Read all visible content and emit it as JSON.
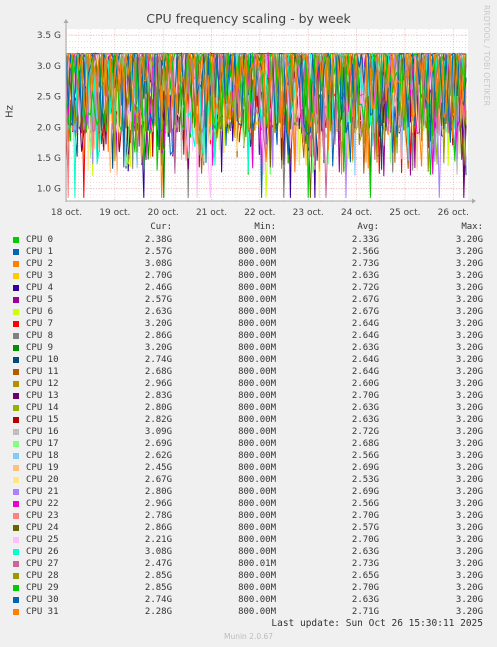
{
  "chart_data": {
    "type": "line",
    "title": "CPU frequency scaling - by week",
    "ylabel": "Hz",
    "ylim": [
      0.8,
      3.6
    ],
    "yticks": [
      "1.0 G",
      "1.5 G",
      "2.0 G",
      "2.5 G",
      "3.0 G",
      "3.5 G"
    ],
    "ytick_values": [
      1.0,
      1.5,
      2.0,
      2.5,
      3.0,
      3.5
    ],
    "xticks": [
      "18 oct.",
      "19 oct.",
      "20 oct.",
      "21 oct.",
      "22 oct.",
      "23 oct.",
      "24 oct.",
      "25 oct.",
      "26 oct."
    ],
    "grid": true,
    "legend_placement": "bottom",
    "columns": [
      "Cur:",
      "Min:",
      "Avg:",
      "Max:"
    ],
    "series": [
      {
        "name": "CPU 0",
        "color": "#00cc00",
        "cur": "2.38G",
        "min": "800.00M",
        "avg": "2.33G",
        "max": "3.20G"
      },
      {
        "name": "CPU 1",
        "color": "#0066b3",
        "cur": "2.57G",
        "min": "800.00M",
        "avg": "2.56G",
        "max": "3.20G"
      },
      {
        "name": "CPU 2",
        "color": "#ff8000",
        "cur": "3.08G",
        "min": "800.00M",
        "avg": "2.73G",
        "max": "3.20G"
      },
      {
        "name": "CPU 3",
        "color": "#ffcc00",
        "cur": "2.70G",
        "min": "800.00M",
        "avg": "2.63G",
        "max": "3.20G"
      },
      {
        "name": "CPU 4",
        "color": "#330099",
        "cur": "2.46G",
        "min": "800.00M",
        "avg": "2.72G",
        "max": "3.20G"
      },
      {
        "name": "CPU 5",
        "color": "#990099",
        "cur": "2.57G",
        "min": "800.00M",
        "avg": "2.67G",
        "max": "3.20G"
      },
      {
        "name": "CPU 6",
        "color": "#ccff00",
        "cur": "2.63G",
        "min": "800.00M",
        "avg": "2.67G",
        "max": "3.20G"
      },
      {
        "name": "CPU 7",
        "color": "#ff0000",
        "cur": "3.20G",
        "min": "800.00M",
        "avg": "2.64G",
        "max": "3.20G"
      },
      {
        "name": "CPU 8",
        "color": "#808080",
        "cur": "2.86G",
        "min": "800.00M",
        "avg": "2.64G",
        "max": "3.20G"
      },
      {
        "name": "CPU 9",
        "color": "#008f00",
        "cur": "3.20G",
        "min": "800.00M",
        "avg": "2.63G",
        "max": "3.20G"
      },
      {
        "name": "CPU 10",
        "color": "#00487d",
        "cur": "2.74G",
        "min": "800.00M",
        "avg": "2.64G",
        "max": "3.20G"
      },
      {
        "name": "CPU 11",
        "color": "#b35a00",
        "cur": "2.68G",
        "min": "800.00M",
        "avg": "2.64G",
        "max": "3.20G"
      },
      {
        "name": "CPU 12",
        "color": "#b38f00",
        "cur": "2.96G",
        "min": "800.00M",
        "avg": "2.60G",
        "max": "3.20G"
      },
      {
        "name": "CPU 13",
        "color": "#6b006b",
        "cur": "2.83G",
        "min": "800.00M",
        "avg": "2.70G",
        "max": "3.20G"
      },
      {
        "name": "CPU 14",
        "color": "#8fb300",
        "cur": "2.80G",
        "min": "800.00M",
        "avg": "2.63G",
        "max": "3.20G"
      },
      {
        "name": "CPU 15",
        "color": "#b30000",
        "cur": "2.82G",
        "min": "800.00M",
        "avg": "2.63G",
        "max": "3.20G"
      },
      {
        "name": "CPU 16",
        "color": "#bebebe",
        "cur": "3.09G",
        "min": "800.00M",
        "avg": "2.72G",
        "max": "3.20G"
      },
      {
        "name": "CPU 17",
        "color": "#80ff80",
        "cur": "2.69G",
        "min": "800.00M",
        "avg": "2.68G",
        "max": "3.20G"
      },
      {
        "name": "CPU 18",
        "color": "#80c9ff",
        "cur": "2.62G",
        "min": "800.00M",
        "avg": "2.56G",
        "max": "3.20G"
      },
      {
        "name": "CPU 19",
        "color": "#ffc080",
        "cur": "2.45G",
        "min": "800.00M",
        "avg": "2.69G",
        "max": "3.20G"
      },
      {
        "name": "CPU 20",
        "color": "#ffe680",
        "cur": "2.67G",
        "min": "800.00M",
        "avg": "2.53G",
        "max": "3.20G"
      },
      {
        "name": "CPU 21",
        "color": "#aa80ff",
        "cur": "2.80G",
        "min": "800.00M",
        "avg": "2.69G",
        "max": "3.20G"
      },
      {
        "name": "CPU 22",
        "color": "#ee00cc",
        "cur": "2.96G",
        "min": "800.00M",
        "avg": "2.56G",
        "max": "3.20G"
      },
      {
        "name": "CPU 23",
        "color": "#ff8080",
        "cur": "2.78G",
        "min": "800.00M",
        "avg": "2.70G",
        "max": "3.20G"
      },
      {
        "name": "CPU 24",
        "color": "#666600",
        "cur": "2.86G",
        "min": "800.00M",
        "avg": "2.57G",
        "max": "3.20G"
      },
      {
        "name": "CPU 25",
        "color": "#ffbfff",
        "cur": "2.21G",
        "min": "800.00M",
        "avg": "2.70G",
        "max": "3.20G"
      },
      {
        "name": "CPU 26",
        "color": "#00ffcc",
        "cur": "3.08G",
        "min": "800.00M",
        "avg": "2.63G",
        "max": "3.20G"
      },
      {
        "name": "CPU 27",
        "color": "#cc6699",
        "cur": "2.47G",
        "min": "800.01M",
        "avg": "2.73G",
        "max": "3.20G"
      },
      {
        "name": "CPU 28",
        "color": "#999900",
        "cur": "2.85G",
        "min": "800.00M",
        "avg": "2.65G",
        "max": "3.20G"
      },
      {
        "name": "CPU 29",
        "color": "#00cc00",
        "cur": "2.85G",
        "min": "800.00M",
        "avg": "2.70G",
        "max": "3.20G"
      },
      {
        "name": "CPU 30",
        "color": "#0066b3",
        "cur": "2.74G",
        "min": "800.00M",
        "avg": "2.63G",
        "max": "3.20G"
      },
      {
        "name": "CPU 31",
        "color": "#ff8000",
        "cur": "2.28G",
        "min": "800.00M",
        "avg": "2.71G",
        "max": "3.20G"
      }
    ]
  },
  "last_update": "Last update: Sun Oct 26 15:30:11 2025",
  "watermark": "RRDTOOL / TOBI OETIKER",
  "footer": "Munin 2.0.67"
}
